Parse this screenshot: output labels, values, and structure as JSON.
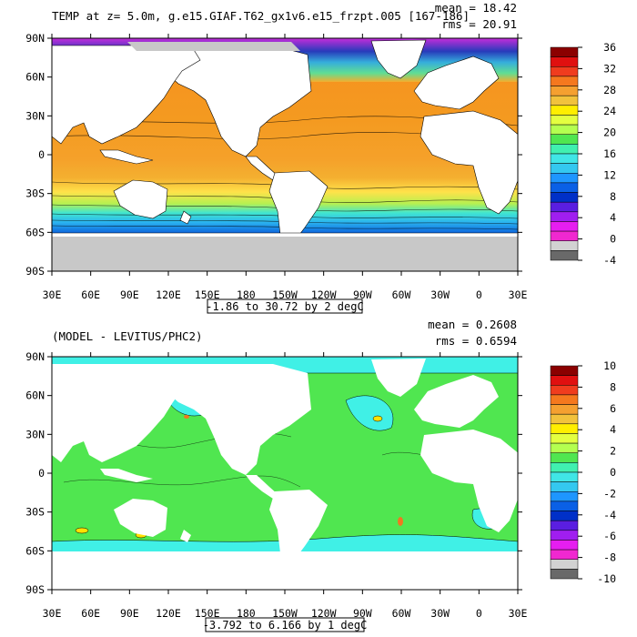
{
  "panels": [
    {
      "title": "TEMP at z=    5.0m, g.e15.GIAF.T62_gx1v6.e15_frzpt.005 [167-186]",
      "stats": [
        "mean = 18.42",
        "rms = 20.91"
      ],
      "range_label": "-1.86 to 30.72 by 2 degC",
      "colorbar": {
        "ticks": [
          "36",
          "32",
          "28",
          "24",
          "20",
          "16",
          "12",
          "8",
          "4",
          "0",
          "-4"
        ],
        "colors": [
          "#8b0000",
          "#e01010",
          "#f03c1e",
          "#f5781e",
          "#f5a030",
          "#f2c23c",
          "#ffee00",
          "#e4ff40",
          "#b4ff50",
          "#50e650",
          "#40f0b0",
          "#40e6e6",
          "#34c8f0",
          "#1e96ff",
          "#0a60e6",
          "#0030c8",
          "#5a1ee1",
          "#a01ef0",
          "#e61ef0",
          "#f028d0",
          "#d2d2d2",
          "#696969"
        ]
      }
    },
    {
      "title": "(MODEL - LEVITUS/PHC2)",
      "stats": [
        "mean = 0.2608",
        "rms = 0.6594"
      ],
      "range_label": "-3.792 to 6.166 by 1 degC",
      "colorbar": {
        "ticks": [
          "10",
          "8",
          "6",
          "4",
          "2",
          "0",
          "-2",
          "-4",
          "-6",
          "-8",
          "-10"
        ],
        "colors": [
          "#8b0000",
          "#e01010",
          "#f03c1e",
          "#f5781e",
          "#f5a030",
          "#f2c23c",
          "#ffee00",
          "#e4ff40",
          "#b4ff50",
          "#50e650",
          "#40f0b0",
          "#40e6e6",
          "#34c8f0",
          "#1e96ff",
          "#0a60e6",
          "#0030c8",
          "#5a1ee1",
          "#a01ef0",
          "#e61ef0",
          "#f028d0",
          "#d2d2d2",
          "#696969"
        ]
      }
    }
  ],
  "axes": {
    "lat_labels": [
      "90N",
      "60N",
      "30N",
      "0",
      "30S",
      "60S",
      "90S"
    ],
    "lon_labels": [
      "30E",
      "60E",
      "90E",
      "120E",
      "150E",
      "180",
      "150W",
      "120W",
      "90W",
      "60W",
      "30W",
      "0",
      "30E"
    ]
  },
  "colors": {
    "land": "#ffffff",
    "ice": "#c8c8c8",
    "diff_ocean": "#50e650",
    "diff_cool": "#40f0e6"
  }
}
